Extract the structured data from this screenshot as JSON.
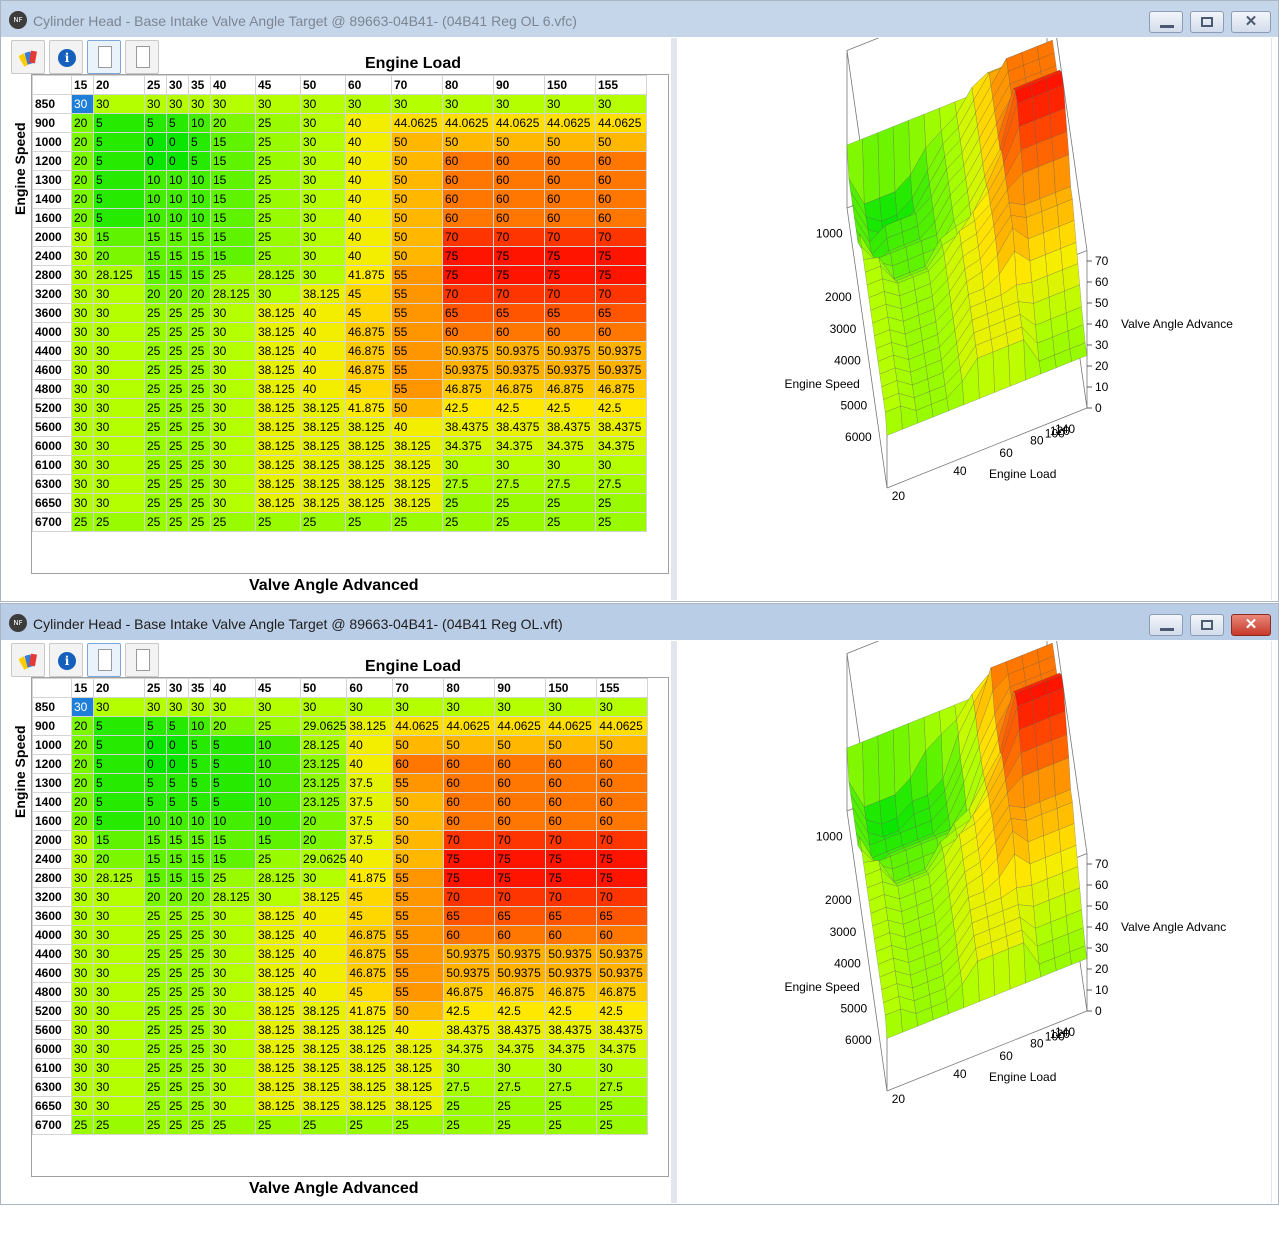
{
  "colors": {
    "red": "#ff1e00",
    "orange": "#ff8a00",
    "yellow": "#ffeb00",
    "lime": "#b4ff00",
    "green": "#0ae600",
    "selected": "#1e7fd8"
  },
  "windows": [
    {
      "title": "Cylinder Head - Base Intake Valve Angle Target @ 89663-04B41- (04B41 Reg OL 6.vfc)",
      "app_icon": "NF",
      "axis_top": "Engine Load",
      "axis_left": "Engine Speed",
      "axis_bottom": "Valve Angle Advanced",
      "columns": [
        "15",
        "20",
        "25",
        "30",
        "35",
        "40",
        "45",
        "50",
        "60",
        "70",
        "80",
        "90",
        "150",
        "155"
      ],
      "rows": [
        {
          "rpm": "850",
          "values": [
            "30",
            "30",
            "30",
            "30",
            "30",
            "30",
            "30",
            "30",
            "30",
            "30",
            "30",
            "30",
            "30",
            "30"
          ]
        },
        {
          "rpm": "900",
          "values": [
            "20",
            "5",
            "5",
            "5",
            "10",
            "20",
            "25",
            "30",
            "40",
            "44.0625",
            "44.0625",
            "44.0625",
            "44.0625",
            "44.0625"
          ]
        },
        {
          "rpm": "1000",
          "values": [
            "20",
            "5",
            "0",
            "0",
            "5",
            "15",
            "25",
            "30",
            "40",
            "50",
            "50",
            "50",
            "50",
            "50"
          ]
        },
        {
          "rpm": "1200",
          "values": [
            "20",
            "5",
            "0",
            "0",
            "5",
            "15",
            "25",
            "30",
            "40",
            "50",
            "60",
            "60",
            "60",
            "60"
          ]
        },
        {
          "rpm": "1300",
          "values": [
            "20",
            "5",
            "10",
            "10",
            "10",
            "15",
            "25",
            "30",
            "40",
            "50",
            "60",
            "60",
            "60",
            "60"
          ]
        },
        {
          "rpm": "1400",
          "values": [
            "20",
            "5",
            "10",
            "10",
            "10",
            "15",
            "25",
            "30",
            "40",
            "50",
            "60",
            "60",
            "60",
            "60"
          ]
        },
        {
          "rpm": "1600",
          "values": [
            "20",
            "5",
            "10",
            "10",
            "10",
            "15",
            "25",
            "30",
            "40",
            "50",
            "60",
            "60",
            "60",
            "60"
          ]
        },
        {
          "rpm": "2000",
          "values": [
            "30",
            "15",
            "15",
            "15",
            "15",
            "15",
            "25",
            "30",
            "40",
            "50",
            "70",
            "70",
            "70",
            "70"
          ]
        },
        {
          "rpm": "2400",
          "values": [
            "30",
            "20",
            "15",
            "15",
            "15",
            "15",
            "25",
            "30",
            "40",
            "50",
            "75",
            "75",
            "75",
            "75"
          ]
        },
        {
          "rpm": "2800",
          "values": [
            "30",
            "28.125",
            "15",
            "15",
            "15",
            "25",
            "28.125",
            "30",
            "41.875",
            "55",
            "75",
            "75",
            "75",
            "75"
          ]
        },
        {
          "rpm": "3200",
          "values": [
            "30",
            "30",
            "20",
            "20",
            "20",
            "28.125",
            "30",
            "38.125",
            "45",
            "55",
            "70",
            "70",
            "70",
            "70"
          ]
        },
        {
          "rpm": "3600",
          "values": [
            "30",
            "30",
            "25",
            "25",
            "25",
            "30",
            "38.125",
            "40",
            "45",
            "55",
            "65",
            "65",
            "65",
            "65"
          ]
        },
        {
          "rpm": "4000",
          "values": [
            "30",
            "30",
            "25",
            "25",
            "25",
            "30",
            "38.125",
            "40",
            "46.875",
            "55",
            "60",
            "60",
            "60",
            "60"
          ]
        },
        {
          "rpm": "4400",
          "values": [
            "30",
            "30",
            "25",
            "25",
            "25",
            "30",
            "38.125",
            "40",
            "46.875",
            "55",
            "50.9375",
            "50.9375",
            "50.9375",
            "50.9375"
          ]
        },
        {
          "rpm": "4600",
          "values": [
            "30",
            "30",
            "25",
            "25",
            "25",
            "30",
            "38.125",
            "40",
            "46.875",
            "55",
            "50.9375",
            "50.9375",
            "50.9375",
            "50.9375"
          ]
        },
        {
          "rpm": "4800",
          "values": [
            "30",
            "30",
            "25",
            "25",
            "25",
            "30",
            "38.125",
            "40",
            "45",
            "55",
            "46.875",
            "46.875",
            "46.875",
            "46.875"
          ]
        },
        {
          "rpm": "5200",
          "values": [
            "30",
            "30",
            "25",
            "25",
            "25",
            "30",
            "38.125",
            "38.125",
            "41.875",
            "50",
            "42.5",
            "42.5",
            "42.5",
            "42.5"
          ]
        },
        {
          "rpm": "5600",
          "values": [
            "30",
            "30",
            "25",
            "25",
            "25",
            "30",
            "38.125",
            "38.125",
            "38.125",
            "40",
            "38.4375",
            "38.4375",
            "38.4375",
            "38.4375"
          ]
        },
        {
          "rpm": "6000",
          "values": [
            "30",
            "30",
            "25",
            "25",
            "25",
            "30",
            "38.125",
            "38.125",
            "38.125",
            "38.125",
            "34.375",
            "34.375",
            "34.375",
            "34.375"
          ]
        },
        {
          "rpm": "6100",
          "values": [
            "30",
            "30",
            "25",
            "25",
            "25",
            "30",
            "38.125",
            "38.125",
            "38.125",
            "38.125",
            "30",
            "30",
            "30",
            "30"
          ]
        },
        {
          "rpm": "6300",
          "values": [
            "30",
            "30",
            "25",
            "25",
            "25",
            "30",
            "38.125",
            "38.125",
            "38.125",
            "38.125",
            "27.5",
            "27.5",
            "27.5",
            "27.5"
          ]
        },
        {
          "rpm": "6650",
          "values": [
            "30",
            "30",
            "25",
            "25",
            "25",
            "30",
            "38.125",
            "38.125",
            "38.125",
            "38.125",
            "25",
            "25",
            "25",
            "25"
          ]
        },
        {
          "rpm": "6700",
          "values": [
            "25",
            "25",
            "25",
            "25",
            "25",
            "25",
            "25",
            "25",
            "25",
            "25",
            "25",
            "25",
            "25",
            "25"
          ]
        }
      ],
      "plot": {
        "speed_ticks": [
          "1000",
          "2000",
          "3000",
          "4000",
          "5000",
          "6000"
        ],
        "load_ticks": [
          "20",
          "40",
          "60",
          "80",
          "100",
          "120",
          "140"
        ],
        "value_ticks": [
          "70",
          "60",
          "50",
          "40",
          "30",
          "20",
          "10",
          "0"
        ],
        "speed_label": "Engine Speed",
        "load_label": "Engine Load",
        "value_label": "Valve Angle Advance"
      }
    },
    {
      "title": "Cylinder Head - Base Intake Valve Angle Target @ 89663-04B41- (04B41 Reg OL.vft)",
      "app_icon": "NF",
      "axis_top": "Engine Load",
      "axis_left": "Engine Speed",
      "axis_bottom": "Valve Angle Advanced",
      "columns": [
        "15",
        "20",
        "25",
        "30",
        "35",
        "40",
        "45",
        "50",
        "60",
        "70",
        "80",
        "90",
        "150",
        "155"
      ],
      "rows": [
        {
          "rpm": "850",
          "values": [
            "30",
            "30",
            "30",
            "30",
            "30",
            "30",
            "30",
            "30",
            "30",
            "30",
            "30",
            "30",
            "30",
            "30"
          ]
        },
        {
          "rpm": "900",
          "values": [
            "20",
            "5",
            "5",
            "5",
            "10",
            "20",
            "25",
            "29.0625",
            "38.125",
            "44.0625",
            "44.0625",
            "44.0625",
            "44.0625",
            "44.0625"
          ]
        },
        {
          "rpm": "1000",
          "values": [
            "20",
            "5",
            "0",
            "0",
            "5",
            "5",
            "10",
            "28.125",
            "40",
            "50",
            "50",
            "50",
            "50",
            "50"
          ]
        },
        {
          "rpm": "1200",
          "values": [
            "20",
            "5",
            "0",
            "0",
            "5",
            "5",
            "10",
            "23.125",
            "40",
            "60",
            "60",
            "60",
            "60",
            "60"
          ]
        },
        {
          "rpm": "1300",
          "values": [
            "20",
            "5",
            "5",
            "5",
            "5",
            "5",
            "10",
            "23.125",
            "37.5",
            "55",
            "60",
            "60",
            "60",
            "60"
          ]
        },
        {
          "rpm": "1400",
          "values": [
            "20",
            "5",
            "5",
            "5",
            "5",
            "5",
            "10",
            "23.125",
            "37.5",
            "50",
            "60",
            "60",
            "60",
            "60"
          ]
        },
        {
          "rpm": "1600",
          "values": [
            "20",
            "5",
            "10",
            "10",
            "10",
            "10",
            "10",
            "20",
            "37.5",
            "50",
            "60",
            "60",
            "60",
            "60"
          ]
        },
        {
          "rpm": "2000",
          "values": [
            "30",
            "15",
            "15",
            "15",
            "15",
            "15",
            "15",
            "20",
            "37.5",
            "50",
            "70",
            "70",
            "70",
            "70"
          ]
        },
        {
          "rpm": "2400",
          "values": [
            "30",
            "20",
            "15",
            "15",
            "15",
            "15",
            "25",
            "29.0625",
            "40",
            "50",
            "75",
            "75",
            "75",
            "75"
          ]
        },
        {
          "rpm": "2800",
          "values": [
            "30",
            "28.125",
            "15",
            "15",
            "15",
            "25",
            "28.125",
            "30",
            "41.875",
            "55",
            "75",
            "75",
            "75",
            "75"
          ]
        },
        {
          "rpm": "3200",
          "values": [
            "30",
            "30",
            "20",
            "20",
            "20",
            "28.125",
            "30",
            "38.125",
            "45",
            "55",
            "70",
            "70",
            "70",
            "70"
          ]
        },
        {
          "rpm": "3600",
          "values": [
            "30",
            "30",
            "25",
            "25",
            "25",
            "30",
            "38.125",
            "40",
            "45",
            "55",
            "65",
            "65",
            "65",
            "65"
          ]
        },
        {
          "rpm": "4000",
          "values": [
            "30",
            "30",
            "25",
            "25",
            "25",
            "30",
            "38.125",
            "40",
            "46.875",
            "55",
            "60",
            "60",
            "60",
            "60"
          ]
        },
        {
          "rpm": "4400",
          "values": [
            "30",
            "30",
            "25",
            "25",
            "25",
            "30",
            "38.125",
            "40",
            "46.875",
            "55",
            "50.9375",
            "50.9375",
            "50.9375",
            "50.9375"
          ]
        },
        {
          "rpm": "4600",
          "values": [
            "30",
            "30",
            "25",
            "25",
            "25",
            "30",
            "38.125",
            "40",
            "46.875",
            "55",
            "50.9375",
            "50.9375",
            "50.9375",
            "50.9375"
          ]
        },
        {
          "rpm": "4800",
          "values": [
            "30",
            "30",
            "25",
            "25",
            "25",
            "30",
            "38.125",
            "40",
            "45",
            "55",
            "46.875",
            "46.875",
            "46.875",
            "46.875"
          ]
        },
        {
          "rpm": "5200",
          "values": [
            "30",
            "30",
            "25",
            "25",
            "25",
            "30",
            "38.125",
            "38.125",
            "41.875",
            "50",
            "42.5",
            "42.5",
            "42.5",
            "42.5"
          ]
        },
        {
          "rpm": "5600",
          "values": [
            "30",
            "30",
            "25",
            "25",
            "25",
            "30",
            "38.125",
            "38.125",
            "38.125",
            "40",
            "38.4375",
            "38.4375",
            "38.4375",
            "38.4375"
          ]
        },
        {
          "rpm": "6000",
          "values": [
            "30",
            "30",
            "25",
            "25",
            "25",
            "30",
            "38.125",
            "38.125",
            "38.125",
            "38.125",
            "34.375",
            "34.375",
            "34.375",
            "34.375"
          ]
        },
        {
          "rpm": "6100",
          "values": [
            "30",
            "30",
            "25",
            "25",
            "25",
            "30",
            "38.125",
            "38.125",
            "38.125",
            "38.125",
            "30",
            "30",
            "30",
            "30"
          ]
        },
        {
          "rpm": "6300",
          "values": [
            "30",
            "30",
            "25",
            "25",
            "25",
            "30",
            "38.125",
            "38.125",
            "38.125",
            "38.125",
            "27.5",
            "27.5",
            "27.5",
            "27.5"
          ]
        },
        {
          "rpm": "6650",
          "values": [
            "30",
            "30",
            "25",
            "25",
            "25",
            "30",
            "38.125",
            "38.125",
            "38.125",
            "38.125",
            "25",
            "25",
            "25",
            "25"
          ]
        },
        {
          "rpm": "6700",
          "values": [
            "25",
            "25",
            "25",
            "25",
            "25",
            "25",
            "25",
            "25",
            "25",
            "25",
            "25",
            "25",
            "25",
            "25"
          ]
        }
      ],
      "plot": {
        "speed_ticks": [
          "1000",
          "2000",
          "3000",
          "4000",
          "5000",
          "6000"
        ],
        "load_ticks": [
          "20",
          "40",
          "60",
          "80",
          "100",
          "120",
          "140"
        ],
        "value_ticks": [
          "70",
          "60",
          "50",
          "40",
          "30",
          "20",
          "10",
          "0"
        ],
        "speed_label": "Engine Speed",
        "load_label": "Engine Load",
        "value_label": "Valve Angle Advanc"
      }
    }
  ]
}
